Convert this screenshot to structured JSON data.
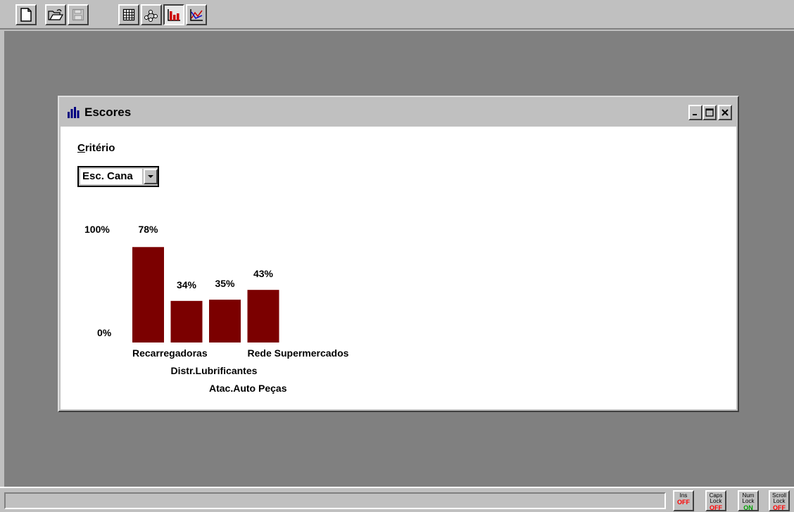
{
  "toolbar": {
    "buttons": [
      {
        "name": "new-document-icon"
      },
      {
        "name": "open-folder-icon"
      },
      {
        "name": "save-disk-icon",
        "disabled": true
      },
      {
        "name": "grid-table-icon"
      },
      {
        "name": "network-diagram-icon"
      },
      {
        "name": "bar-chart-icon",
        "pressed": true
      },
      {
        "name": "line-chart-icon"
      }
    ]
  },
  "window": {
    "title": "Escores",
    "criterio_label_accel": "C",
    "criterio_label_rest": "ritério",
    "criterio_value": "Esc. Cana"
  },
  "chart_data": {
    "type": "bar",
    "categories": [
      "Recarregadoras",
      "Distr.Lubrificantes",
      "Atac.Auto Peças",
      "Rede Supermercados"
    ],
    "values": [
      78,
      34,
      35,
      43
    ],
    "data_labels": [
      "78%",
      "34%",
      "35%",
      "43%"
    ],
    "y_tick_labels": [
      "100%",
      "0%"
    ],
    "ylim": [
      0,
      100
    ],
    "bar_color": "#7b0000"
  },
  "statusbar": {
    "keys": [
      {
        "label": "Ins",
        "state": "OFF",
        "color": "#ff0000"
      },
      {
        "label": "Caps Lock",
        "state": "OFF",
        "color": "#ff0000"
      },
      {
        "label": "Num Lock",
        "state": "ON",
        "color": "#00a000"
      },
      {
        "label": "Scroll Lock",
        "state": "OFF",
        "color": "#ff0000"
      }
    ]
  }
}
